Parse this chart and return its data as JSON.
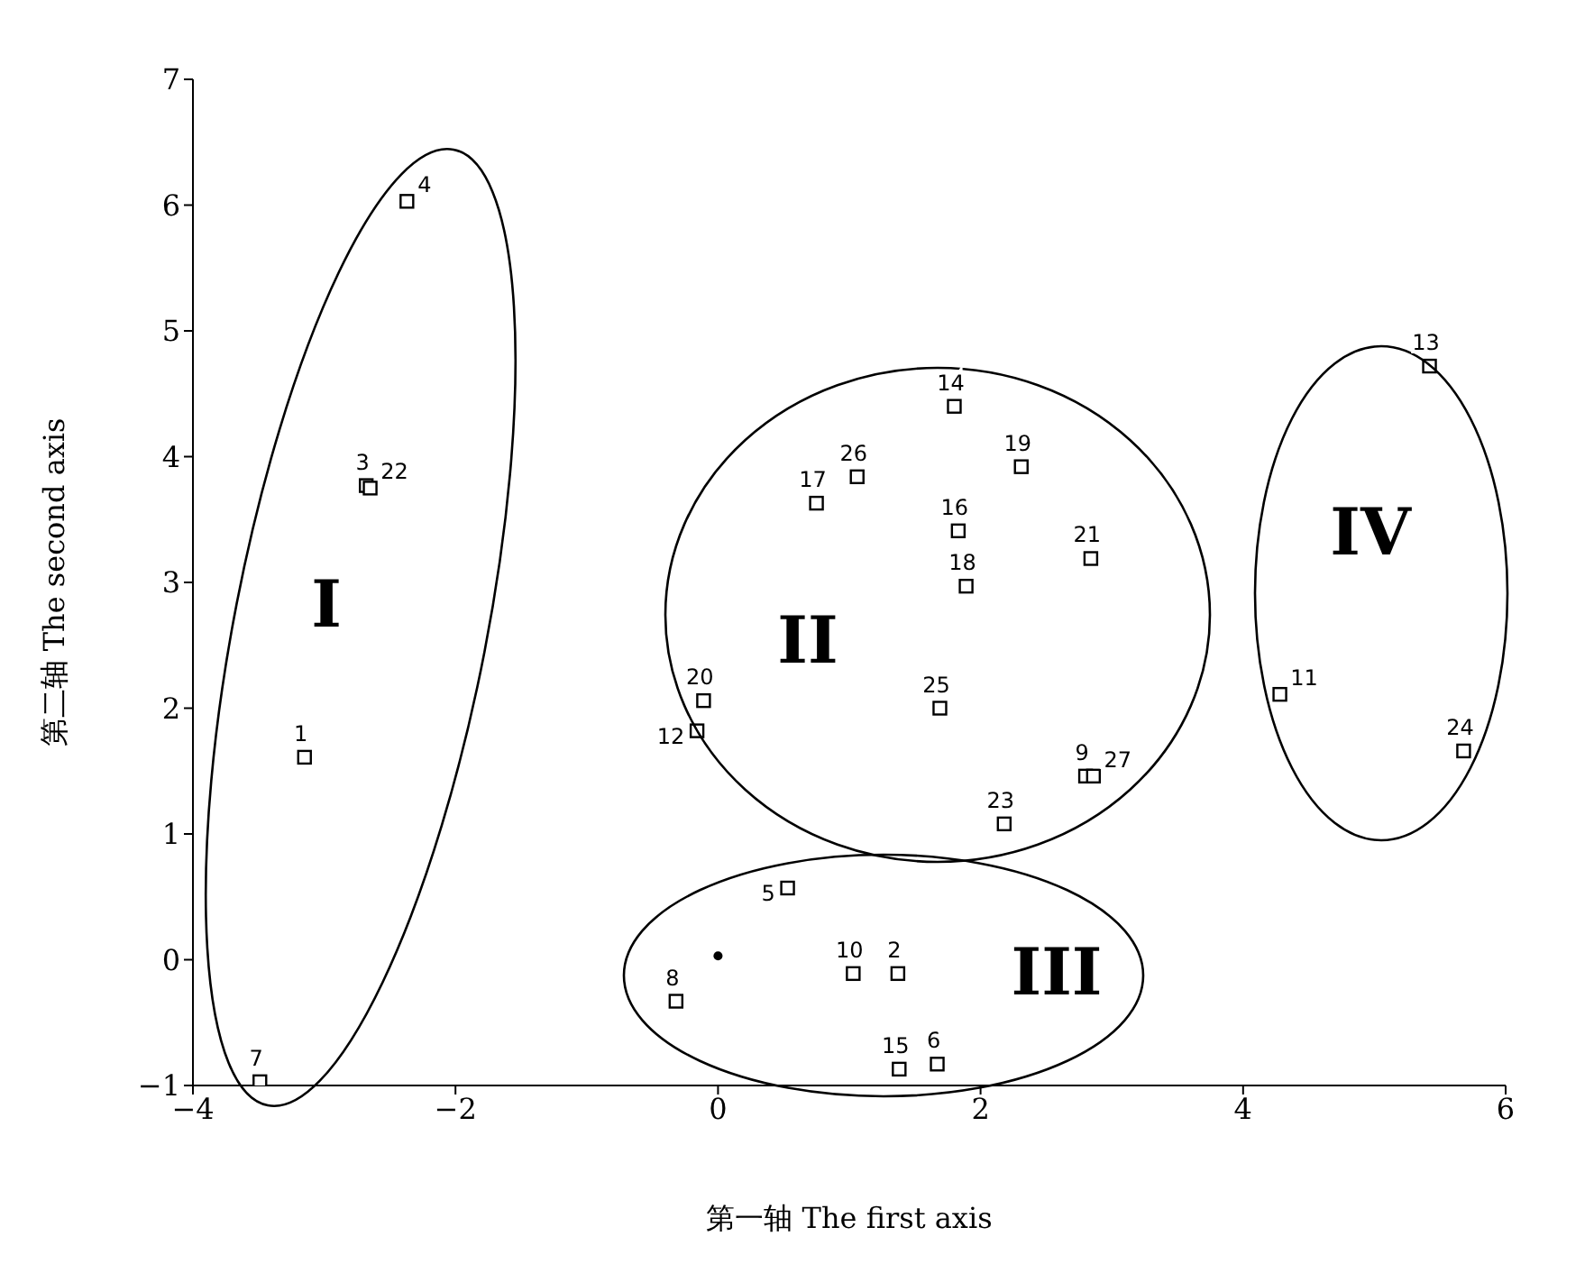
{
  "chart_data": {
    "type": "scatter",
    "xlabel": "第一轴 The first axis",
    "ylabel": "第二轴 The second axis",
    "xlim": [
      -4,
      6
    ],
    "xticks": [
      -4,
      -2,
      0,
      2,
      4,
      6
    ],
    "ylim": [
      -1,
      7
    ],
    "yticks": [
      -1,
      0,
      1,
      2,
      3,
      4,
      5,
      6,
      7
    ],
    "grid": false,
    "marker": "square",
    "series": [
      {
        "color": "#000000",
        "x": [
          -3.15,
          1.37,
          -2.68,
          -2.37,
          0.53,
          1.67,
          -3.49,
          -0.32,
          2.8,
          1.03,
          4.28,
          -0.16,
          5.42,
          1.8,
          1.38,
          1.83,
          0.75,
          1.89,
          2.31,
          -0.11,
          2.84,
          -2.65,
          2.18,
          5.68,
          1.69,
          1.06,
          2.86
        ],
        "values": [
          1.61,
          -0.11,
          3.77,
          6.03,
          0.57,
          -0.83,
          -0.97,
          -0.33,
          1.46,
          -0.11,
          2.11,
          1.82,
          4.72,
          4.4,
          -0.87,
          3.41,
          3.63,
          2.97,
          3.92,
          2.06,
          3.19,
          3.75,
          1.08,
          1.66,
          2.0,
          3.84,
          1.46
        ]
      },
      {
        "color": "#000000",
        "marker": "circle",
        "x": [
          0.0
        ],
        "values": [
          0.03
        ]
      }
    ],
    "annotations": [
      {
        "text": "1",
        "x": -3.15,
        "y": 1.61
      },
      {
        "text": "2",
        "x": 1.37,
        "y": -0.11
      },
      {
        "text": "3",
        "x": -2.68,
        "y": 3.77
      },
      {
        "text": "4",
        "x": -2.37,
        "y": 6.03
      },
      {
        "text": "5",
        "x": 0.53,
        "y": 0.57
      },
      {
        "text": "6",
        "x": 1.67,
        "y": -0.83
      },
      {
        "text": "7",
        "x": -3.49,
        "y": -0.97
      },
      {
        "text": "8",
        "x": -0.32,
        "y": -0.33
      },
      {
        "text": "9",
        "x": 2.8,
        "y": 1.46
      },
      {
        "text": "10",
        "x": 1.03,
        "y": -0.11
      },
      {
        "text": "11",
        "x": 4.28,
        "y": 2.11
      },
      {
        "text": "12",
        "x": -0.16,
        "y": 1.82
      },
      {
        "text": "13",
        "x": 5.42,
        "y": 4.72
      },
      {
        "text": "14",
        "x": 1.8,
        "y": 4.4
      },
      {
        "text": "15",
        "x": 1.38,
        "y": -0.87
      },
      {
        "text": "16",
        "x": 1.83,
        "y": 3.41
      },
      {
        "text": "17",
        "x": 0.75,
        "y": 3.63
      },
      {
        "text": "18",
        "x": 1.89,
        "y": 2.97
      },
      {
        "text": "19",
        "x": 2.31,
        "y": 3.92
      },
      {
        "text": "20",
        "x": -0.11,
        "y": 2.06
      },
      {
        "text": "21",
        "x": 2.84,
        "y": 3.19
      },
      {
        "text": "22",
        "x": -2.65,
        "y": 3.75
      },
      {
        "text": "23",
        "x": 2.18,
        "y": 1.08
      },
      {
        "text": "24",
        "x": 5.68,
        "y": 1.66
      },
      {
        "text": "25",
        "x": 1.69,
        "y": 2.0
      },
      {
        "text": "26",
        "x": 1.06,
        "y": 3.84
      },
      {
        "text": "27",
        "x": 2.86,
        "y": 1.46
      },
      "I",
      "II",
      "III",
      "IV"
    ]
  }
}
